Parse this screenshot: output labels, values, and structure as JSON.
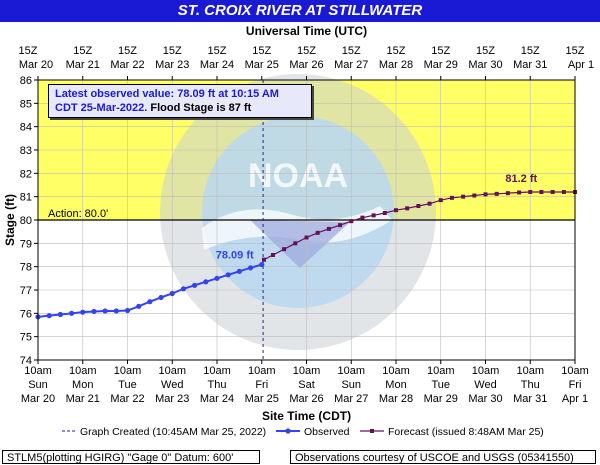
{
  "title": "ST. CROIX RIVER AT STILLWATER",
  "utc_axis_label": "Universal Time (UTC)",
  "site_axis_label": "Site Time (CDT)",
  "y_axis_label": "Stage (ft)",
  "observation_box": {
    "line1": "Latest observed value: 78.09 ft at 10:15 AM",
    "line2_blue": "CDT 25-Mar-2022.",
    "line2_black": "Flood Stage is 87 ft"
  },
  "action_label": "Action: 80.0'",
  "observed_label": "78.09 ft",
  "forecast_label": "81.2 ft",
  "legend": {
    "created": "Graph Created (10:45AM Mar 25, 2022)",
    "observed": "Observed",
    "forecast": "Forecast (issued 8:48AM Mar 25)"
  },
  "footer": {
    "left": "STLM5(plotting HGIRG) \"Gage 0\" Datum: 600'",
    "right": "Observations courtesy of USCOE and USGS (05341550)"
  },
  "watermark_text": "NOAA",
  "colors": {
    "title_bg": "#1a1ad4",
    "action_zone": "#ffff66",
    "observed": "#3344ee",
    "forecast": "#661155",
    "created_line": "#2222aa"
  },
  "chart_data": {
    "type": "line",
    "ylim": [
      74,
      86
    ],
    "y_ticks": [
      "74",
      "75",
      "76",
      "77",
      "78",
      "79",
      "80",
      "81",
      "82",
      "83",
      "84",
      "85",
      "86"
    ],
    "utc_ticks": [
      {
        "top": "15Z",
        "bottom": "Mar 20"
      },
      {
        "top": "15Z",
        "bottom": "Mar 21"
      },
      {
        "top": "15Z",
        "bottom": "Mar 22"
      },
      {
        "top": "15Z",
        "bottom": "Mar 23"
      },
      {
        "top": "15Z",
        "bottom": "Mar 24"
      },
      {
        "top": "15Z",
        "bottom": "Mar 25"
      },
      {
        "top": "15Z",
        "bottom": "Mar 26"
      },
      {
        "top": "15Z",
        "bottom": "Mar 27"
      },
      {
        "top": "15Z",
        "bottom": "Mar 28"
      },
      {
        "top": "15Z",
        "bottom": "Mar 29"
      },
      {
        "top": "15Z",
        "bottom": "Mar 30"
      },
      {
        "top": "15Z",
        "bottom": "Mar 31"
      },
      {
        "top": "15Z",
        "bottom": "Apr 1"
      }
    ],
    "cdt_ticks": [
      {
        "time": "10am",
        "day": "Sun",
        "date": "Mar 20"
      },
      {
        "time": "10am",
        "day": "Mon",
        "date": "Mar 21"
      },
      {
        "time": "10am",
        "day": "Tue",
        "date": "Mar 22"
      },
      {
        "time": "10am",
        "day": "Wed",
        "date": "Mar 23"
      },
      {
        "time": "10am",
        "day": "Thu",
        "date": "Mar 24"
      },
      {
        "time": "10am",
        "day": "Fri",
        "date": "Mar 25"
      },
      {
        "time": "10am",
        "day": "Sat",
        "date": "Mar 26"
      },
      {
        "time": "10am",
        "day": "Sun",
        "date": "Mar 27"
      },
      {
        "time": "10am",
        "day": "Mon",
        "date": "Mar 28"
      },
      {
        "time": "10am",
        "day": "Tue",
        "date": "Mar 29"
      },
      {
        "time": "10am",
        "day": "Wed",
        "date": "Mar 30"
      },
      {
        "time": "10am",
        "day": "Thu",
        "date": "Mar 31"
      },
      {
        "time": "10am",
        "day": "Fri",
        "date": "Apr 1"
      }
    ],
    "action_stage": 80.0,
    "flood_stage": 87,
    "graph_created_day": 5.03,
    "series": [
      {
        "name": "Observed",
        "x_days": [
          0,
          0.25,
          0.5,
          0.75,
          1,
          1.25,
          1.5,
          1.75,
          2,
          2.25,
          2.5,
          2.75,
          3,
          3.25,
          3.5,
          3.75,
          4,
          4.25,
          4.5,
          4.75,
          5
        ],
        "values": [
          75.85,
          75.9,
          75.95,
          76.0,
          76.05,
          76.08,
          76.1,
          76.1,
          76.12,
          76.3,
          76.5,
          76.68,
          76.85,
          77.05,
          77.2,
          77.35,
          77.5,
          77.65,
          77.8,
          77.95,
          78.09
        ]
      },
      {
        "name": "Forecast",
        "x_days": [
          5.05,
          5.25,
          5.5,
          5.75,
          6,
          6.25,
          6.5,
          6.75,
          7,
          7.25,
          7.5,
          7.75,
          8,
          8.25,
          8.5,
          8.75,
          9,
          9.25,
          9.5,
          9.75,
          10,
          10.25,
          10.5,
          10.75,
          11,
          11.25,
          11.5,
          11.75,
          12
        ],
        "values": [
          78.3,
          78.5,
          78.75,
          79.0,
          79.25,
          79.45,
          79.62,
          79.78,
          79.95,
          80.1,
          80.2,
          80.3,
          80.42,
          80.5,
          80.6,
          80.7,
          80.85,
          80.95,
          81.0,
          81.05,
          81.1,
          81.12,
          81.15,
          81.18,
          81.2,
          81.2,
          81.2,
          81.2,
          81.2
        ]
      }
    ]
  }
}
